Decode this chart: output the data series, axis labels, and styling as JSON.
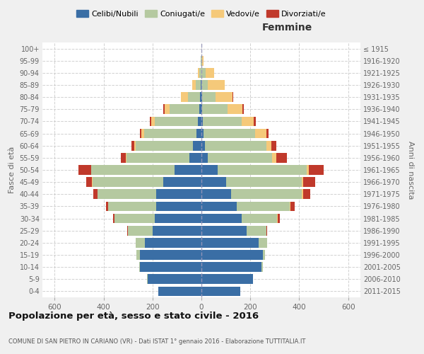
{
  "age_groups": [
    "0-4",
    "5-9",
    "10-14",
    "15-19",
    "20-24",
    "25-29",
    "30-34",
    "35-39",
    "40-44",
    "45-49",
    "50-54",
    "55-59",
    "60-64",
    "65-69",
    "70-74",
    "75-79",
    "80-84",
    "85-89",
    "90-94",
    "95-99",
    "100+"
  ],
  "birth_years": [
    "2011-2015",
    "2006-2010",
    "2001-2005",
    "1996-2000",
    "1991-1995",
    "1986-1990",
    "1981-1985",
    "1976-1980",
    "1971-1975",
    "1966-1970",
    "1961-1965",
    "1956-1960",
    "1951-1955",
    "1946-1950",
    "1941-1945",
    "1936-1940",
    "1931-1935",
    "1926-1930",
    "1921-1925",
    "1916-1920",
    "≤ 1915"
  ],
  "colors": {
    "celibe": "#3a6ea5",
    "coniugato": "#b5c9a0",
    "vedovo": "#f5c97a",
    "divorziato": "#c0392b"
  },
  "male": {
    "celibe": [
      175,
      220,
      250,
      250,
      230,
      200,
      190,
      185,
      185,
      155,
      110,
      50,
      35,
      20,
      15,
      10,
      5,
      2,
      1,
      0,
      0
    ],
    "coniugato": [
      0,
      3,
      5,
      15,
      40,
      100,
      165,
      195,
      240,
      290,
      340,
      255,
      235,
      215,
      175,
      120,
      50,
      20,
      8,
      2,
      1
    ],
    "vedovo": [
      0,
      0,
      0,
      0,
      0,
      0,
      0,
      0,
      1,
      2,
      2,
      3,
      5,
      10,
      15,
      20,
      30,
      15,
      5,
      0,
      0
    ],
    "divorziato": [
      0,
      0,
      0,
      0,
      0,
      3,
      5,
      10,
      15,
      25,
      50,
      20,
      10,
      5,
      5,
      5,
      0,
      0,
      0,
      0,
      0
    ]
  },
  "female": {
    "nubile": [
      160,
      210,
      245,
      250,
      235,
      185,
      165,
      145,
      120,
      100,
      65,
      25,
      15,
      10,
      5,
      3,
      2,
      1,
      1,
      0,
      0
    ],
    "coniugata": [
      0,
      2,
      5,
      10,
      35,
      80,
      145,
      215,
      290,
      310,
      365,
      265,
      250,
      210,
      160,
      105,
      55,
      25,
      15,
      3,
      0
    ],
    "vedova": [
      0,
      0,
      0,
      0,
      0,
      2,
      2,
      5,
      5,
      5,
      10,
      15,
      20,
      45,
      50,
      60,
      70,
      70,
      35,
      5,
      1
    ],
    "divorziata": [
      0,
      0,
      0,
      0,
      0,
      3,
      8,
      15,
      30,
      50,
      60,
      45,
      20,
      10,
      8,
      5,
      3,
      0,
      0,
      0,
      0
    ]
  },
  "xlim": 650,
  "title": "Popolazione per età, sesso e stato civile - 2016",
  "subtitle": "COMUNE DI SAN PIETRO IN CARIANO (VR) - Dati ISTAT 1° gennaio 2016 - Elaborazione TUTTITALIA.IT",
  "ylabel_left": "Fasce di età",
  "ylabel_right": "Anni di nascita",
  "xlabel_right": "Femmine",
  "bg_color": "#f0f0f0",
  "plot_bg_color": "#ffffff",
  "grid_color": "#cccccc"
}
